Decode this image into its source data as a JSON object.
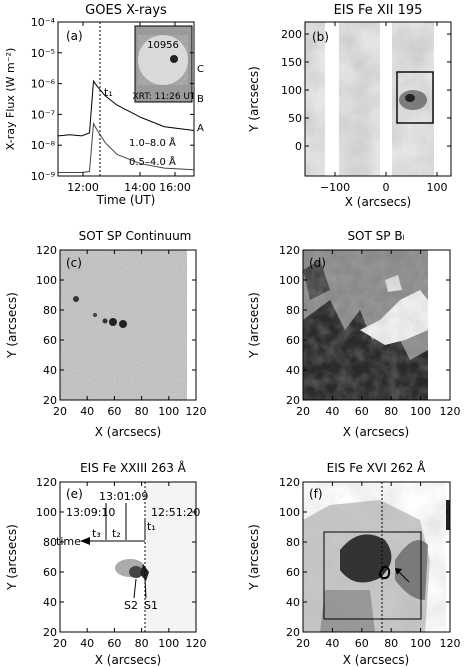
{
  "panels": {
    "a": {
      "title": "GOES X-rays",
      "letter": "(a)",
      "ylabel": "X-ray Flux (W m⁻²)",
      "xlabel": "Time (UT)",
      "yticks": [
        "10⁻⁴",
        "10⁻⁵",
        "10⁻⁶",
        "10⁻⁷",
        "10⁻⁸",
        "10⁻⁹"
      ],
      "xticks": [
        "12:00",
        "14:00",
        "16:00"
      ],
      "t1": "t₁",
      "inset_num": "10956",
      "inset_caption": "XRT: 11:26 UT",
      "class_labels": [
        "C",
        "B",
        "A"
      ],
      "legend": [
        "1.0–8.0 Å",
        "0.5–4.0 Å"
      ]
    },
    "b": {
      "title": "EIS Fe XII 195",
      "letter": "(b)",
      "ylabel": "Y (arcsecs)",
      "xlabel": "X (arcsecs)",
      "yticks": [
        "200",
        "150",
        "100",
        "50",
        "0"
      ],
      "xticks": [
        "−100",
        "0",
        "100"
      ]
    },
    "c": {
      "title": "SOT SP Continuum",
      "letter": "(c)",
      "ylabel": "Y (arcsecs)",
      "xlabel": "X (arcsecs)",
      "yticks": [
        "120",
        "100",
        "80",
        "60",
        "40",
        "20"
      ],
      "xticks": [
        "20",
        "40",
        "60",
        "80",
        "100",
        "120"
      ]
    },
    "d": {
      "title": "SOT SP Bₗ",
      "letter": "(d)",
      "ylabel": "Y (arcsecs)",
      "xlabel": "X (arcsecs)",
      "yticks": [
        "120",
        "100",
        "80",
        "60",
        "40",
        "20"
      ],
      "xticks": [
        "20",
        "40",
        "60",
        "80",
        "100",
        "120"
      ]
    },
    "e": {
      "title": "EIS Fe XXIII 263 Å",
      "letter": "(e)",
      "ylabel": "Y (arcsecs)",
      "xlabel": "X (arcsecs)",
      "yticks": [
        "120",
        "100",
        "80",
        "60",
        "40",
        "20"
      ],
      "xticks": [
        "20",
        "40",
        "60",
        "80",
        "100",
        "120"
      ],
      "times": [
        "13:01:09",
        "13:09:10",
        "12:51:20"
      ],
      "tlabels": [
        "t₃",
        "t₂",
        "t₁"
      ],
      "time_word": "time",
      "s_labels": [
        "S2",
        "S1"
      ]
    },
    "f": {
      "title": "EIS Fe XVI 262 Å",
      "letter": "(f)",
      "ylabel": "Y (arcsecs)",
      "xlabel": "X (arcsecs)",
      "yticks": [
        "120",
        "100",
        "80",
        "60",
        "40",
        "20"
      ],
      "xticks": [
        "20",
        "40",
        "60",
        "80",
        "100",
        "120"
      ]
    }
  },
  "chart_data": [
    {
      "type": "line",
      "title": "GOES X-rays",
      "xlabel": "Time (UT)",
      "ylabel": "X-ray Flux (W m⁻²)",
      "yscale": "log",
      "ylim": [
        1e-09,
        0.0001
      ],
      "xlim": [
        "11:30",
        "17:15"
      ],
      "series": [
        {
          "name": "1.0–8.0 Å",
          "x": [
            "11:30",
            "12:00",
            "12:30",
            "12:50",
            "13:00",
            "13:10",
            "13:30",
            "14:00",
            "15:00",
            "16:00",
            "17:15"
          ],
          "values": [
            2e-08,
            2.2e-08,
            2e-08,
            2.5e-08,
            1.2e-06,
            8e-07,
            4e-07,
            2e-07,
            8e-08,
            4e-08,
            3e-08
          ]
        },
        {
          "name": "0.5–4.0 Å",
          "x": [
            "11:30",
            "12:00",
            "12:30",
            "12:50",
            "13:00",
            "13:10",
            "13:30",
            "14:00",
            "15:00",
            "16:00",
            "17:15"
          ],
          "values": [
            1.3e-09,
            1.3e-09,
            1.3e-09,
            1.4e-09,
            5e-08,
            3e-08,
            1.2e-08,
            5e-09,
            2.5e-09,
            1.8e-09,
            1.6e-09
          ]
        }
      ],
      "markers": [
        {
          "label": "t₁",
          "x": "12:51"
        }
      ]
    }
  ]
}
